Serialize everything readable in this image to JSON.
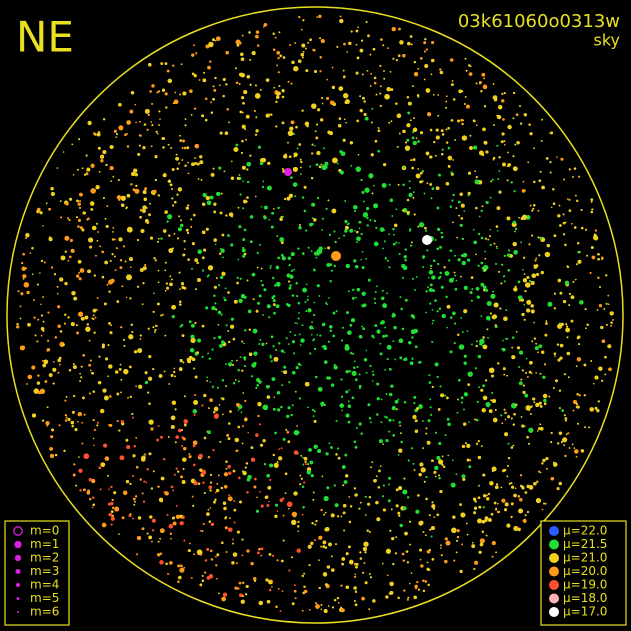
{
  "header": {
    "title": "NE",
    "image_id": "03k61060o0313w",
    "mode": "sky"
  },
  "magnitude_legend": [
    {
      "label": "m=0",
      "color": "#e020e0"
    },
    {
      "label": "m=1",
      "color": "#e020e0"
    },
    {
      "label": "m=2",
      "color": "#e020e0"
    },
    {
      "label": "m=3",
      "color": "#e020e0"
    },
    {
      "label": "m=4",
      "color": "#e020e0"
    },
    {
      "label": "m=5",
      "color": "#e020e0"
    },
    {
      "label": "m=6",
      "color": "#e020e0"
    }
  ],
  "surface_brightness_legend": [
    {
      "label": "μ=22.0",
      "color": "#2a5cff"
    },
    {
      "label": "μ=21.5",
      "color": "#22dd33"
    },
    {
      "label": "μ=21.0",
      "color": "#f0d020"
    },
    {
      "label": "μ=20.0",
      "color": "#ff9a1a"
    },
    {
      "label": "μ=19.0",
      "color": "#ff5030"
    },
    {
      "label": "μ=18.0",
      "color": "#ffb0b0"
    },
    {
      "label": "μ=17.0",
      "color": "#ffffff"
    }
  ],
  "frame_color": "#e8e020"
}
